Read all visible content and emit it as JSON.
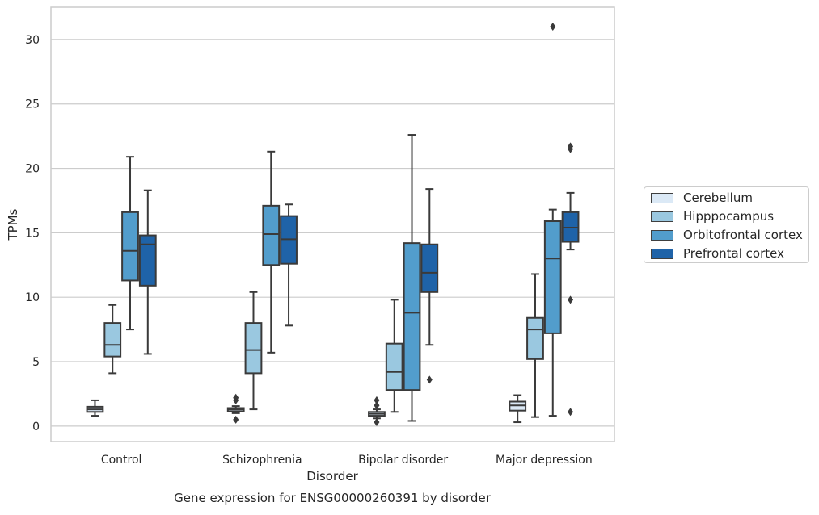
{
  "chart_data": {
    "type": "box",
    "title": "Gene expression for ENSG00000260391 by disorder",
    "xlabel": "Disorder",
    "ylabel": "TPMs",
    "ylim": [
      -1.2,
      32.5
    ],
    "yticks": [
      0,
      5,
      10,
      15,
      20,
      25,
      30
    ],
    "grid": "horizontal",
    "legend_position": "right",
    "categories": [
      "Control",
      "Schizophrenia",
      "Bipolar disorder",
      "Major depression"
    ],
    "series": [
      {
        "name": "Cerebellum",
        "color": "#dbe9f6",
        "boxes": [
          {
            "min": 0.8,
            "q1": 1.1,
            "median": 1.3,
            "q3": 1.5,
            "max": 2.0,
            "outliers": []
          },
          {
            "min": 1.0,
            "q1": 1.15,
            "median": 1.3,
            "q3": 1.4,
            "max": 1.55,
            "outliers": [
              2.0,
              2.2,
              0.5
            ]
          },
          {
            "min": 0.6,
            "q1": 0.8,
            "median": 0.95,
            "q3": 1.1,
            "max": 1.3,
            "outliers": [
              1.6,
              2.0,
              0.3
            ]
          },
          {
            "min": 0.3,
            "q1": 1.2,
            "median": 1.6,
            "q3": 1.9,
            "max": 2.4,
            "outliers": []
          }
        ]
      },
      {
        "name": "Hipppocampus",
        "color": "#9ac8e0",
        "boxes": [
          {
            "min": 4.1,
            "q1": 5.4,
            "median": 6.3,
            "q3": 8.0,
            "max": 9.4,
            "outliers": []
          },
          {
            "min": 1.3,
            "q1": 4.1,
            "median": 5.9,
            "q3": 8.0,
            "max": 10.4,
            "outliers": []
          },
          {
            "min": 1.1,
            "q1": 2.8,
            "median": 4.2,
            "q3": 6.4,
            "max": 9.8,
            "outliers": []
          },
          {
            "min": 0.7,
            "q1": 5.2,
            "median": 7.5,
            "q3": 8.4,
            "max": 11.8,
            "outliers": []
          }
        ]
      },
      {
        "name": "Orbitofrontal cortex",
        "color": "#529dcc",
        "boxes": [
          {
            "min": 7.5,
            "q1": 11.3,
            "median": 13.6,
            "q3": 16.6,
            "max": 20.9,
            "outliers": []
          },
          {
            "min": 5.7,
            "q1": 12.5,
            "median": 14.9,
            "q3": 17.1,
            "max": 21.3,
            "outliers": []
          },
          {
            "min": 0.4,
            "q1": 2.8,
            "median": 8.8,
            "q3": 14.2,
            "max": 22.6,
            "outliers": []
          },
          {
            "min": 0.8,
            "q1": 7.2,
            "median": 13.0,
            "q3": 15.9,
            "max": 16.8,
            "outliers": [
              31.0
            ]
          }
        ]
      },
      {
        "name": "Prefrontal cortex",
        "color": "#1f63a8",
        "boxes": [
          {
            "min": 5.6,
            "q1": 10.9,
            "median": 14.1,
            "q3": 14.8,
            "max": 18.3,
            "outliers": []
          },
          {
            "min": 7.8,
            "q1": 12.6,
            "median": 14.5,
            "q3": 16.3,
            "max": 17.2,
            "outliers": []
          },
          {
            "min": 6.3,
            "q1": 10.4,
            "median": 11.9,
            "q3": 14.1,
            "max": 18.4,
            "outliers": [
              3.6
            ]
          },
          {
            "min": 13.7,
            "q1": 14.3,
            "median": 15.4,
            "q3": 16.6,
            "max": 18.1,
            "outliers": [
              21.5,
              21.7,
              9.8,
              1.1
            ]
          }
        ]
      }
    ]
  }
}
